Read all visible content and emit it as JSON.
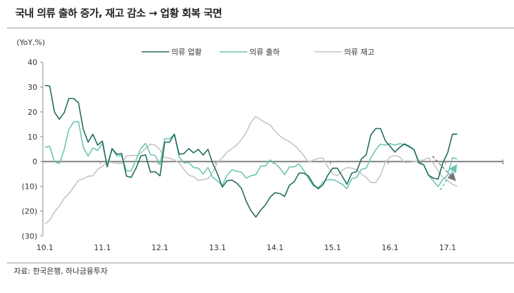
{
  "title": "국내 의류 출하 증가, 재고 감소 → 업황 회복 국면",
  "source": "자료: 한국은행, 하나금융투자",
  "chart_data": {
    "type": "line",
    "ylabel": "(YoY,%)",
    "ylim": [
      -30,
      40
    ],
    "yticks": [
      40,
      30,
      20,
      10,
      0,
      -10,
      -20,
      -30
    ],
    "ytick_labels": [
      "40",
      "30",
      "20",
      "10",
      "0",
      "(10)",
      "(20)",
      "(30)"
    ],
    "xtick_labels": [
      "10.1",
      "11.1",
      "12.1",
      "13.1",
      "14.1",
      "15.1",
      "16.1",
      "17.1"
    ],
    "x_start": "2010.1",
    "x_end": "2017.3",
    "frequency": "monthly",
    "grid": false,
    "legend_position": "top",
    "series": [
      {
        "name": "의류 업황",
        "color": "#1f6b5e",
        "values": [
          30.7,
          30.4,
          19.9,
          17,
          19.6,
          25.4,
          25.4,
          23.7,
          13,
          7.8,
          11,
          6.6,
          8.2,
          -2.2,
          5.2,
          2.9,
          3.2,
          -5.9,
          -6.4,
          -2.7,
          2.2,
          2.7,
          -4.3,
          -4.1,
          -5.8,
          7.8,
          7.8,
          11,
          2.9,
          3.2,
          5.2,
          3.5,
          4.9,
          2.6,
          4.9,
          -0.8,
          -5,
          -10.3,
          -7.8,
          -7.5,
          -8.7,
          -10.8,
          -16.1,
          -19.9,
          -22.4,
          -19.6,
          -17.5,
          -14.3,
          -12.6,
          -12.9,
          -14.1,
          -9.6,
          -8.1,
          -4.7,
          -4.7,
          -5.9,
          -9.2,
          -11,
          -9.4,
          -5.5,
          -2.7,
          -2.7,
          -5.9,
          -9.2,
          -4.7,
          -4.1,
          1,
          2.7,
          10.8,
          13.3,
          13.3,
          8.4,
          6.1,
          3.8,
          5.7,
          7.1,
          6.1,
          4.7,
          -0.6,
          -1.3,
          -5.5,
          -6.7,
          -7.1,
          -0.5,
          3.5,
          11,
          11
        ]
      },
      {
        "name": "의류 출하",
        "color": "#6cc4b4",
        "values": [
          5.8,
          6.1,
          -0.1,
          -0.8,
          4.7,
          13,
          15.9,
          16.1,
          5.7,
          2.2,
          5.5,
          4.5,
          7.3,
          -1.8,
          5.2,
          2.2,
          2.4,
          -3.8,
          -3.8,
          0.6,
          5.2,
          7.3,
          2.9,
          2.4,
          -1.3,
          9.2,
          9.2,
          11,
          1.9,
          -0.6,
          -0.4,
          -2.4,
          -2.7,
          -5,
          -2.4,
          -6.4,
          -7.8,
          -9.8,
          -5.5,
          -3.3,
          -3.9,
          -4.3,
          -6.7,
          -5.7,
          -5.3,
          -1.8,
          -1.8,
          0.6,
          -0.8,
          -2.7,
          -5.3,
          -2.2,
          -2.2,
          -1,
          -3.6,
          -6.9,
          -9.8,
          -10.6,
          -8.3,
          -7.3,
          -7.3,
          -8.1,
          -9.2,
          -11,
          -6.9,
          -6.4,
          -3.2,
          -2.7,
          1.5,
          4.7,
          7,
          6.6,
          7.2,
          6.6,
          7.2,
          6.8,
          5.8,
          4.7,
          -0.1,
          -1.3,
          -5.5,
          -7.8,
          -10.1,
          -7.3,
          -5.5,
          1.5,
          1
        ]
      },
      {
        "name": "의류 재고",
        "color": "#c4c4c4",
        "values": [
          -25.2,
          -23.7,
          -20.3,
          -18,
          -14.9,
          -12.9,
          -10.4,
          -7.6,
          -7,
          -5.9,
          -5.8,
          -3.2,
          -1.8,
          -0.1,
          -0.4,
          -0.8,
          -0.8,
          2.2,
          2.4,
          2.4,
          3.3,
          5.2,
          7,
          6.6,
          4.7,
          1.5,
          1.3,
          0.6,
          -0.6,
          -3.2,
          -5.5,
          -6.1,
          -7.6,
          -7.3,
          -6.9,
          -4.3,
          -0.4,
          1.5,
          3.8,
          5.2,
          6.6,
          8.9,
          11.7,
          15.9,
          18.2,
          16.8,
          15.6,
          14.7,
          12.2,
          10.3,
          8.9,
          8,
          6.6,
          4.7,
          2.4,
          -0.4,
          0.6,
          1.2,
          1.5,
          -2.2,
          -5,
          -5.8,
          -3.6,
          -2.4,
          -2.7,
          -3.2,
          -5,
          -6.4,
          -8.5,
          -8.5,
          -5.5,
          -0.4,
          1.9,
          2.4,
          1.9,
          -0.4,
          -0.4,
          -0.1,
          0.3,
          0.6,
          1.5,
          -0.8,
          -3.6,
          -6.4,
          -7.8,
          -9.2,
          -9.9
        ]
      }
    ],
    "annotations": [
      {
        "type": "dashed-arrow",
        "direction": "down",
        "color": "#777777"
      },
      {
        "type": "dashed-arrow",
        "direction": "up",
        "color": "#6cc4b4"
      }
    ]
  }
}
